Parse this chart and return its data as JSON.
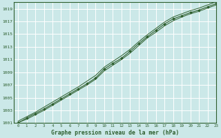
{
  "background_color": "#cbe8e8",
  "plot_bg_color": "#cbe8e8",
  "grid_color": "#ffffff",
  "line_color": "#2d5e2d",
  "marker_color": "#2d5e2d",
  "xlabel": "Graphe pression niveau de la mer (hPa)",
  "xlim": [
    -0.5,
    23
  ],
  "ylim": [
    1001,
    1020
  ],
  "yticks": [
    1001,
    1003,
    1005,
    1007,
    1009,
    1011,
    1013,
    1015,
    1017,
    1019
  ],
  "xticks": [
    0,
    1,
    2,
    3,
    4,
    5,
    6,
    7,
    8,
    9,
    10,
    11,
    12,
    13,
    14,
    15,
    16,
    17,
    18,
    19,
    20,
    21,
    22,
    23
  ],
  "series1": [
    1001.0,
    1001.8,
    1002.5,
    1003.2,
    1004.0,
    1004.8,
    1005.6,
    1006.4,
    1007.2,
    1008.1,
    1009.5,
    1010.4,
    1011.2,
    1012.3,
    1013.5,
    1014.6,
    1015.6,
    1016.6,
    1017.4,
    1017.9,
    1018.4,
    1018.8,
    1019.3,
    1019.8
  ],
  "series2": [
    1001.3,
    1002.0,
    1002.7,
    1003.5,
    1004.3,
    1005.1,
    1005.9,
    1006.7,
    1007.6,
    1008.5,
    1009.8,
    1010.7,
    1011.6,
    1012.6,
    1013.8,
    1014.9,
    1015.9,
    1016.9,
    1017.7,
    1018.2,
    1018.7,
    1019.1,
    1019.6,
    1020.1
  ],
  "series3": [
    1001.1,
    1001.6,
    1002.3,
    1003.0,
    1003.8,
    1004.6,
    1005.4,
    1006.2,
    1007.0,
    1007.9,
    1009.2,
    1010.1,
    1011.0,
    1012.0,
    1013.2,
    1014.4,
    1015.3,
    1016.3,
    1017.1,
    1017.7,
    1018.2,
    1018.6,
    1019.1,
    1019.6
  ]
}
